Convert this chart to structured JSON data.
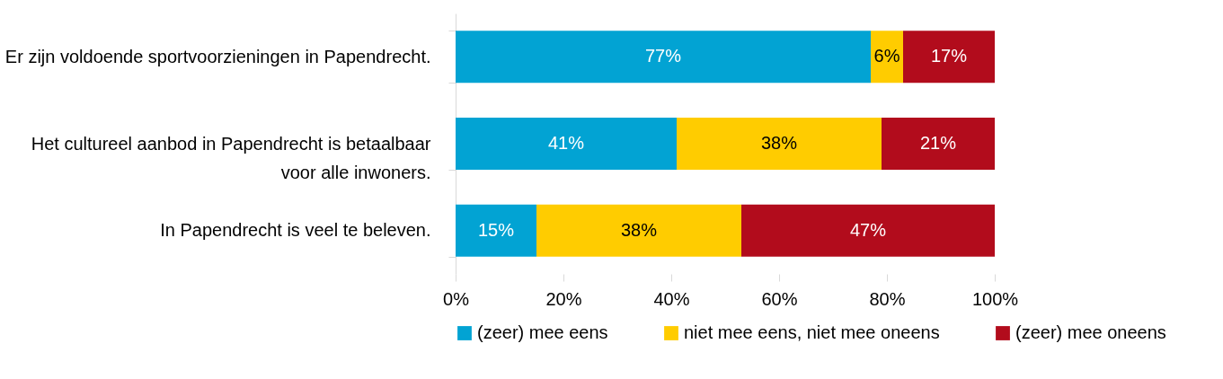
{
  "chart_data": {
    "type": "bar",
    "orientation": "horizontal",
    "stacked": true,
    "categories": [
      "Er zijn voldoende sportvoorzieningen in Papendrecht.",
      "Het cultureel aanbod in Papendrecht is betaalbaar voor alle inwoners.",
      "In Papendrecht is veel te beleven."
    ],
    "series": [
      {
        "name": "(zeer) mee eens",
        "color": "#02a3d3",
        "values": [
          77,
          41,
          15
        ],
        "value_labels": [
          "77%",
          "41%",
          "15%"
        ]
      },
      {
        "name": "niet mee eens, niet mee oneens",
        "color": "#ffcc00",
        "values": [
          6,
          38,
          38
        ],
        "value_labels": [
          "6%",
          "38%",
          "38%"
        ]
      },
      {
        "name": "(zeer) mee oneens",
        "color": "#b20c1c",
        "values": [
          17,
          21,
          47
        ],
        "value_labels": [
          "17%",
          "21%",
          "47%"
        ]
      }
    ],
    "xlim": [
      0,
      100
    ],
    "xticks": [
      {
        "value": 0,
        "label": "0%"
      },
      {
        "value": 20,
        "label": "20%"
      },
      {
        "value": 40,
        "label": "40%"
      },
      {
        "value": 60,
        "label": "60%"
      },
      {
        "value": 80,
        "label": "80%"
      },
      {
        "value": 100,
        "label": "100%"
      }
    ],
    "grid": false,
    "legend": "bottom"
  }
}
